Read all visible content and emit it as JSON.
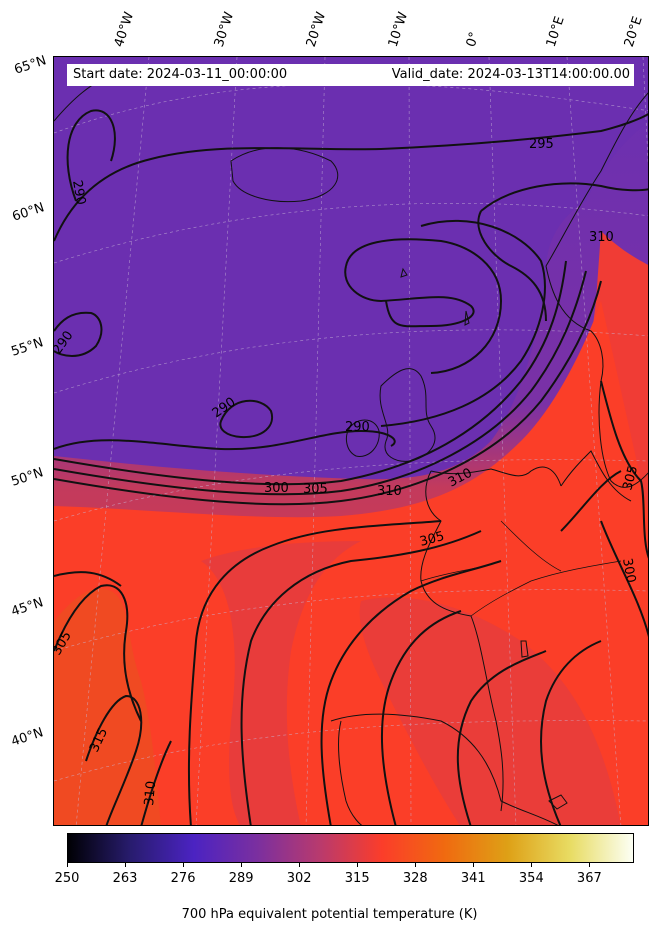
{
  "header": {
    "start_date": "Start date: 2024-03-11_00:00:00",
    "valid_date": "Valid_date: 2024-03-13T14:00:00.00"
  },
  "longitude_labels": [
    "40°W",
    "30°W",
    "20°W",
    "10°W",
    "0°",
    "10°E",
    "20°E"
  ],
  "latitude_labels": [
    "65°N",
    "60°N",
    "55°N",
    "50°N",
    "45°N",
    "40°N"
  ],
  "contour_labels": [
    "295",
    "290",
    "290",
    "290",
    "290",
    "300",
    "305",
    "310",
    "310",
    "310",
    "305",
    "305",
    "300",
    "305",
    "315",
    "310"
  ],
  "colorbar": {
    "ticks": [
      "250",
      "263",
      "276",
      "289",
      "302",
      "315",
      "328",
      "341",
      "354",
      "367"
    ],
    "title": "700 hPa equivalent potential temperature (K)",
    "colors": [
      "#000004",
      "#281c6e",
      "#4b23c2",
      "#7a2fa0",
      "#b83a6e",
      "#fb3d2a",
      "#f06a10",
      "#dea016",
      "#e8dc63",
      "#fcfff4"
    ]
  },
  "colors": {
    "cold_air": "#6b2fb0",
    "warm_air": "#fb3e28",
    "contour": "#111111",
    "coast": "#111111"
  }
}
